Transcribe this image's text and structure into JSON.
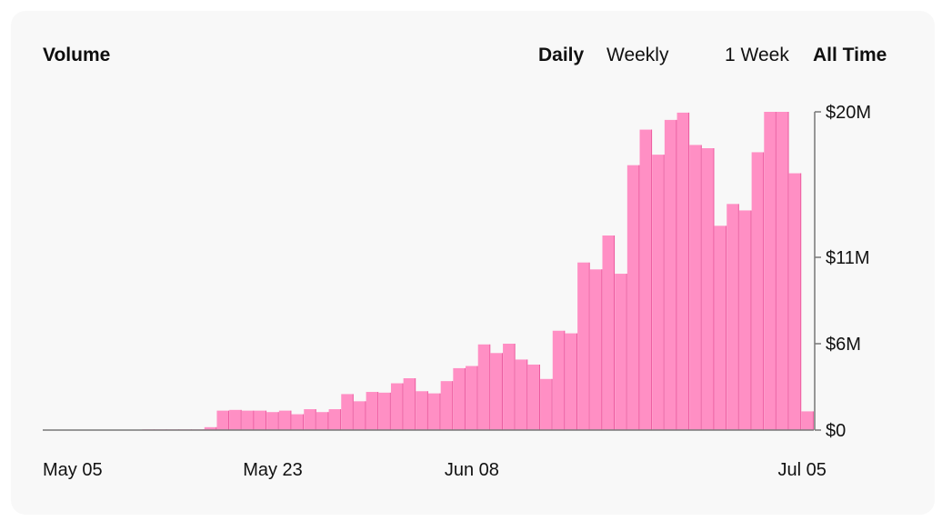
{
  "header": {
    "title": "Volume",
    "granularity": [
      {
        "label": "Daily",
        "active": true
      },
      {
        "label": "Weekly",
        "active": false
      }
    ],
    "range": [
      {
        "label": "1 Week",
        "active": false
      },
      {
        "label": "All Time",
        "active": true
      }
    ]
  },
  "colors": {
    "bar": "#ff8fc4",
    "bar_edge": "#ec5a9f",
    "axis": "#777777",
    "card": "#f8f8f8"
  },
  "chart_data": {
    "type": "bar",
    "title": "Volume",
    "ylabel": "",
    "xlabel": "",
    "ylim": [
      0,
      20
    ],
    "y_unit": "$M",
    "y_ticks": [
      {
        "value": 20,
        "label": "$20M"
      },
      {
        "value": 11,
        "label": "$11M"
      },
      {
        "value": 6,
        "label": "$6M"
      },
      {
        "value": 0,
        "label": "$0"
      }
    ],
    "x_ticks": [
      {
        "index": 0,
        "label": "May 05"
      },
      {
        "index": 18,
        "label": "May 23"
      },
      {
        "index": 34,
        "label": "Jun 08"
      },
      {
        "index": 61,
        "label": "Jul 05"
      }
    ],
    "categories": [
      "May 05",
      "May 06",
      "May 07",
      "May 08",
      "May 09",
      "May 10",
      "May 11",
      "May 12",
      "May 13",
      "May 14",
      "May 15",
      "May 16",
      "May 17",
      "May 18",
      "May 19",
      "May 20",
      "May 21",
      "May 22",
      "May 23",
      "May 24",
      "May 25",
      "May 26",
      "May 27",
      "May 28",
      "May 29",
      "May 30",
      "May 31",
      "Jun 01",
      "Jun 02",
      "Jun 03",
      "Jun 04",
      "Jun 05",
      "Jun 06",
      "Jun 07",
      "Jun 08",
      "Jun 09",
      "Jun 10",
      "Jun 11",
      "Jun 12",
      "Jun 13",
      "Jun 14",
      "Jun 15",
      "Jun 16",
      "Jun 17",
      "Jun 18",
      "Jun 19",
      "Jun 20",
      "Jun 21",
      "Jun 22",
      "Jun 23",
      "Jun 24",
      "Jun 25",
      "Jun 26",
      "Jun 27",
      "Jun 28",
      "Jun 29",
      "Jun 30",
      "Jul 01",
      "Jul 02",
      "Jul 03",
      "Jul 04",
      "Jul 05"
    ],
    "values": [
      0,
      0,
      0,
      0,
      0,
      0,
      0,
      0,
      0.05,
      0.05,
      0.05,
      0.05,
      0.05,
      0.2,
      1.35,
      1.4,
      1.35,
      1.35,
      1.25,
      1.35,
      1.1,
      1.45,
      1.25,
      1.45,
      2.5,
      2.0,
      2.65,
      2.6,
      3.25,
      3.6,
      2.7,
      2.55,
      3.4,
      4.3,
      4.45,
      5.95,
      5.35,
      6.0,
      4.9,
      4.55,
      3.55,
      6.75,
      6.6,
      10.7,
      10.3,
      12.35,
      10.05,
      16.7,
      18.9,
      17.35,
      19.5,
      19.95,
      17.95,
      17.75,
      12.95,
      14.3,
      13.9,
      17.5,
      20.0,
      20.0,
      16.2,
      1.3
    ]
  }
}
